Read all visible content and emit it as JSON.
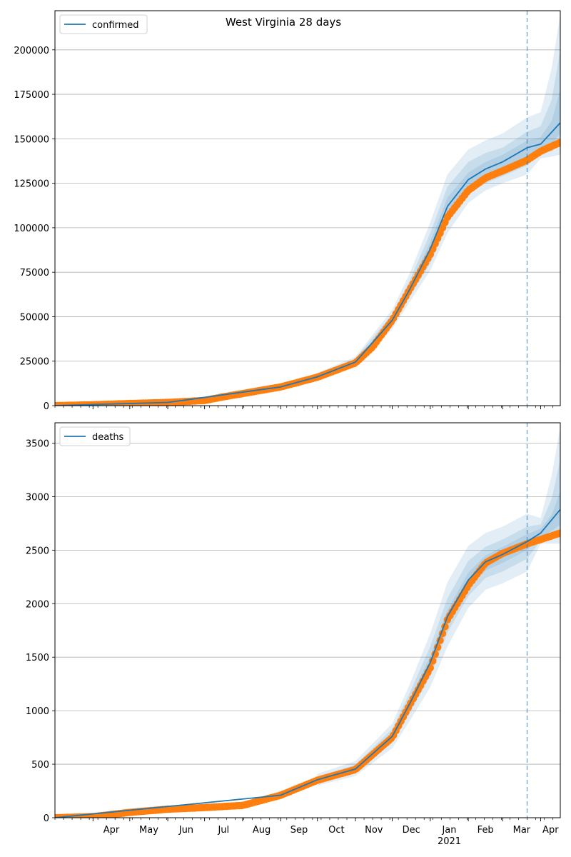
{
  "figure_title": "West Virginia 28 days",
  "colors": {
    "model": "#1f77b4",
    "observed": "#ff7f0e",
    "band": "#1f77b4",
    "grid": "#b0b0b0"
  },
  "x_axis": {
    "start": "2020-03-01",
    "end": "2021-04-17",
    "forecast_start": "2021-03-21",
    "month_ticks": [
      {
        "date": "2020-04-01",
        "label": "Apr"
      },
      {
        "date": "2020-05-01",
        "label": "May"
      },
      {
        "date": "2020-06-01",
        "label": "Jun"
      },
      {
        "date": "2020-07-01",
        "label": "Jul"
      },
      {
        "date": "2020-08-01",
        "label": "Aug"
      },
      {
        "date": "2020-09-01",
        "label": "Sep"
      },
      {
        "date": "2020-10-01",
        "label": "Oct"
      },
      {
        "date": "2020-11-01",
        "label": "Nov"
      },
      {
        "date": "2020-12-01",
        "label": "Dec"
      },
      {
        "date": "2021-01-01",
        "label": "Jan"
      },
      {
        "date": "2021-02-01",
        "label": "Feb"
      },
      {
        "date": "2021-03-01",
        "label": "Mar"
      },
      {
        "date": "2021-04-01",
        "label": "Apr"
      }
    ],
    "year_label": {
      "date": "2021-01-01",
      "label": "2021"
    }
  },
  "chart_data": [
    {
      "type": "line",
      "legend": "confirmed",
      "legend_position": "upper-left",
      "grid": true,
      "ylim": [
        0,
        222000
      ],
      "yticks": [
        0,
        25000,
        50000,
        75000,
        100000,
        125000,
        150000,
        175000,
        200000
      ],
      "observed": {
        "x": [
          "2020-03-01",
          "2020-04-01",
          "2020-05-01",
          "2020-06-01",
          "2020-07-01",
          "2020-07-15",
          "2020-08-01",
          "2020-09-01",
          "2020-10-01",
          "2020-11-01",
          "2020-11-15",
          "2020-12-01",
          "2020-12-15",
          "2021-01-01",
          "2021-01-15",
          "2021-02-01",
          "2021-02-15",
          "2021-03-01",
          "2021-03-21",
          "2021-04-01",
          "2021-04-17"
        ],
        "y": [
          0,
          500,
          1200,
          1800,
          2900,
          4800,
          6800,
          10500,
          16000,
          24000,
          33000,
          48000,
          65000,
          85000,
          106000,
          121000,
          128000,
          132000,
          138000,
          143000,
          148000
        ]
      },
      "model": {
        "x": [
          "2020-03-01",
          "2020-06-01",
          "2020-09-01",
          "2020-10-01",
          "2020-11-01",
          "2020-12-01",
          "2020-12-15",
          "2021-01-01",
          "2021-01-15",
          "2021-02-01",
          "2021-02-15",
          "2021-03-01",
          "2021-03-21",
          "2021-04-01",
          "2021-04-17"
        ],
        "y": [
          0,
          1800,
          10500,
          16200,
          24500,
          48000,
          65000,
          88000,
          112000,
          127000,
          133000,
          137000,
          145000,
          147000,
          159000
        ]
      },
      "uncertainty_bands": [
        {
          "x": [
            "2020-10-01",
            "2020-11-01",
            "2020-12-01",
            "2020-12-15",
            "2021-01-01",
            "2021-01-15",
            "2021-02-01",
            "2021-02-15",
            "2021-03-01",
            "2021-03-21",
            "2021-04-01",
            "2021-04-10",
            "2021-04-17"
          ],
          "lower": [
            14000,
            22000,
            43000,
            58000,
            76000,
            97000,
            114000,
            121000,
            125000,
            130000,
            139000,
            140000,
            141000
          ],
          "upper": [
            18500,
            27500,
            54000,
            74000,
            103000,
            130000,
            144000,
            149000,
            153000,
            162000,
            165000,
            190000,
            220000
          ]
        },
        {
          "x": [
            "2020-10-01",
            "2020-11-01",
            "2020-12-01",
            "2020-12-15",
            "2021-01-01",
            "2021-01-15",
            "2021-02-01",
            "2021-02-15",
            "2021-03-01",
            "2021-03-21",
            "2021-04-01",
            "2021-04-10",
            "2021-04-17"
          ],
          "lower": [
            14800,
            23000,
            45000,
            61000,
            80000,
            102000,
            119000,
            125000,
            129000,
            135000,
            142000,
            143000,
            147000
          ],
          "upper": [
            17500,
            26500,
            51500,
            70000,
            97000,
            123000,
            137000,
            142000,
            145000,
            154000,
            157000,
            172000,
            200000
          ]
        },
        {
          "x": [
            "2020-10-01",
            "2020-11-01",
            "2020-12-01",
            "2020-12-15",
            "2021-01-01",
            "2021-01-15",
            "2021-02-01",
            "2021-02-15",
            "2021-03-01",
            "2021-03-21",
            "2021-04-01",
            "2021-04-10",
            "2021-04-17"
          ],
          "lower": [
            15300,
            23700,
            46500,
            63000,
            84000,
            107000,
            123000,
            129000,
            133000,
            140000,
            144000,
            147000,
            153000
          ],
          "upper": [
            17000,
            25300,
            49500,
            67000,
            92000,
            117000,
            131000,
            137000,
            141000,
            149000,
            151000,
            160000,
            178000
          ]
        }
      ]
    },
    {
      "type": "line",
      "legend": "deaths",
      "legend_position": "upper-left",
      "grid": true,
      "ylim": [
        0,
        3690
      ],
      "yticks": [
        0,
        500,
        1000,
        1500,
        2000,
        2500,
        3000,
        3500
      ],
      "observed": {
        "x": [
          "2020-03-01",
          "2020-04-01",
          "2020-05-01",
          "2020-06-01",
          "2020-07-01",
          "2020-08-01",
          "2020-09-01",
          "2020-10-01",
          "2020-11-01",
          "2020-11-15",
          "2020-12-01",
          "2020-12-15",
          "2021-01-01",
          "2021-01-15",
          "2021-02-01",
          "2021-02-15",
          "2021-03-01",
          "2021-03-21",
          "2021-04-01",
          "2021-04-17"
        ],
        "y": [
          0,
          10,
          50,
          80,
          95,
          115,
          210,
          350,
          450,
          590,
          750,
          1050,
          1400,
          1850,
          2170,
          2380,
          2470,
          2560,
          2600,
          2660
        ]
      },
      "model": {
        "x": [
          "2020-03-01",
          "2020-09-01",
          "2020-10-01",
          "2020-11-01",
          "2020-12-01",
          "2020-12-15",
          "2021-01-01",
          "2021-01-15",
          "2021-02-01",
          "2021-02-15",
          "2021-03-01",
          "2021-03-21",
          "2021-04-01",
          "2021-04-17"
        ],
        "y": [
          0,
          210,
          355,
          455,
          760,
          1060,
          1450,
          1880,
          2220,
          2390,
          2460,
          2580,
          2660,
          2880
        ]
      },
      "uncertainty_bands": [
        {
          "x": [
            "2020-10-01",
            "2020-11-01",
            "2020-12-01",
            "2020-12-15",
            "2021-01-01",
            "2021-01-15",
            "2021-02-01",
            "2021-02-15",
            "2021-03-01",
            "2021-03-21",
            "2021-04-01",
            "2021-04-10",
            "2021-04-17"
          ],
          "lower": [
            300,
            390,
            650,
            900,
            1220,
            1600,
            1960,
            2130,
            2190,
            2300,
            2560,
            2560,
            2560
          ],
          "upper": [
            410,
            530,
            880,
            1240,
            1720,
            2200,
            2540,
            2660,
            2720,
            2840,
            2800,
            3200,
            3650
          ]
        },
        {
          "x": [
            "2020-10-01",
            "2020-11-01",
            "2020-12-01",
            "2020-12-15",
            "2021-01-01",
            "2021-01-15",
            "2021-02-01",
            "2021-02-15",
            "2021-03-01",
            "2021-03-21",
            "2021-04-01",
            "2021-04-10",
            "2021-04-17"
          ],
          "lower": [
            325,
            415,
            700,
            970,
            1320,
            1730,
            2070,
            2240,
            2300,
            2420,
            2590,
            2620,
            2650
          ],
          "upper": [
            385,
            495,
            830,
            1160,
            1600,
            2050,
            2400,
            2530,
            2600,
            2720,
            2740,
            2980,
            3350
          ]
        },
        {
          "x": [
            "2020-10-01",
            "2020-11-01",
            "2020-12-01",
            "2020-12-15",
            "2021-01-01",
            "2021-01-15",
            "2021-02-01",
            "2021-02-15",
            "2021-03-01",
            "2021-03-21",
            "2021-04-01",
            "2021-04-10",
            "2021-04-17"
          ],
          "lower": [
            340,
            435,
            730,
            1020,
            1390,
            1820,
            2150,
            2310,
            2380,
            2500,
            2620,
            2680,
            2740
          ],
          "upper": [
            370,
            475,
            790,
            1100,
            1510,
            1940,
            2290,
            2450,
            2530,
            2650,
            2700,
            2830,
            3050
          ]
        }
      ]
    }
  ]
}
